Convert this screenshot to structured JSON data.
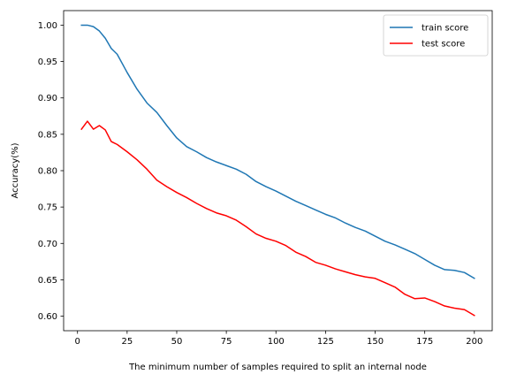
{
  "chart_data": {
    "type": "line",
    "title": "",
    "xlabel": "The minimum number of samples required to split an internal node",
    "ylabel": "Accuracy(%)",
    "xlim": [
      -7,
      209
    ],
    "ylim": [
      0.58,
      1.02
    ],
    "xticks": [
      0,
      25,
      50,
      75,
      100,
      125,
      150,
      175,
      200
    ],
    "yticks": [
      0.6,
      0.65,
      0.7,
      0.75,
      0.8,
      0.85,
      0.9,
      0.95,
      1.0
    ],
    "grid": false,
    "legend_position": "top-right",
    "x": [
      2,
      5,
      8,
      11,
      14,
      17,
      20,
      25,
      30,
      35,
      40,
      45,
      50,
      55,
      60,
      65,
      70,
      75,
      80,
      85,
      90,
      95,
      100,
      105,
      110,
      115,
      120,
      125,
      130,
      135,
      140,
      145,
      150,
      155,
      160,
      165,
      170,
      175,
      180,
      185,
      190,
      195,
      200
    ],
    "series": [
      {
        "name": "train score",
        "color": "#1f77b4",
        "values": [
          1.0,
          1.0,
          0.998,
          0.992,
          0.982,
          0.968,
          0.96,
          0.935,
          0.912,
          0.893,
          0.88,
          0.862,
          0.845,
          0.833,
          0.826,
          0.818,
          0.812,
          0.807,
          0.802,
          0.795,
          0.785,
          0.778,
          0.772,
          0.765,
          0.758,
          0.752,
          0.746,
          0.74,
          0.735,
          0.728,
          0.722,
          0.717,
          0.71,
          0.703,
          0.698,
          0.692,
          0.686,
          0.678,
          0.67,
          0.664,
          0.663,
          0.66,
          0.652
        ]
      },
      {
        "name": "test score",
        "color": "#ff0000",
        "values": [
          0.857,
          0.868,
          0.857,
          0.862,
          0.856,
          0.84,
          0.836,
          0.826,
          0.815,
          0.802,
          0.787,
          0.778,
          0.77,
          0.763,
          0.755,
          0.748,
          0.742,
          0.738,
          0.732,
          0.723,
          0.713,
          0.707,
          0.703,
          0.697,
          0.688,
          0.682,
          0.674,
          0.67,
          0.665,
          0.661,
          0.657,
          0.654,
          0.652,
          0.646,
          0.64,
          0.63,
          0.624,
          0.625,
          0.62,
          0.614,
          0.611,
          0.609,
          0.601
        ]
      }
    ]
  }
}
